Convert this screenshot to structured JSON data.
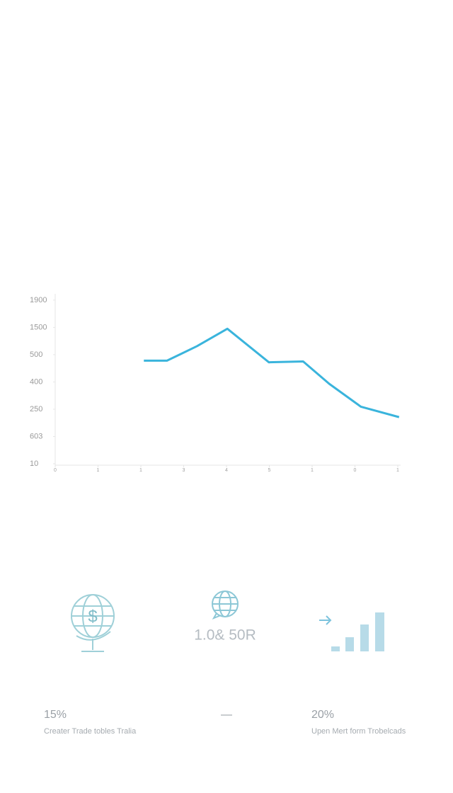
{
  "chart_data": {
    "type": "line",
    "x": [
      2.07,
      2.61,
      3.31,
      4.02,
      4.99,
      5.79,
      6.4,
      7.14,
      8.03
    ],
    "series": [
      {
        "color": "#3ab4dc",
        "values": [
          3.78,
          3.78,
          4.31,
          4.95,
          3.72,
          3.75,
          2.93,
          2.09,
          1.71
        ]
      }
    ],
    "xlim": [
      0,
      8
    ],
    "xticks": [
      0,
      {
        "value": 1,
        "label": "1"
      },
      {
        "value": 2,
        "label": "1"
      },
      3,
      4,
      5,
      {
        "value": 6,
        "label": "1"
      },
      {
        "value": 7,
        "label": "0"
      },
      {
        "value": 8,
        "label": "1"
      }
    ],
    "ylim": [
      0,
      6.1
    ],
    "yticks": [
      {
        "value": 0,
        "label": "10"
      },
      {
        "value": 1,
        "label": "603"
      },
      {
        "value": 2,
        "label": "250"
      },
      {
        "value": 3,
        "label": "400"
      },
      {
        "value": 4,
        "label": "500"
      },
      {
        "value": 5,
        "label": "1500"
      },
      {
        "value": 6,
        "label": "1900"
      }
    ],
    "grid": false
  },
  "stats": {
    "center_value": "1.0& 50R",
    "left": {
      "value": "15%",
      "caption": "Creater Trade tobles Tralia"
    },
    "middle": {
      "value": "—"
    },
    "right": {
      "value": "20%",
      "caption": "Upen Mert form Trobelcads"
    }
  }
}
